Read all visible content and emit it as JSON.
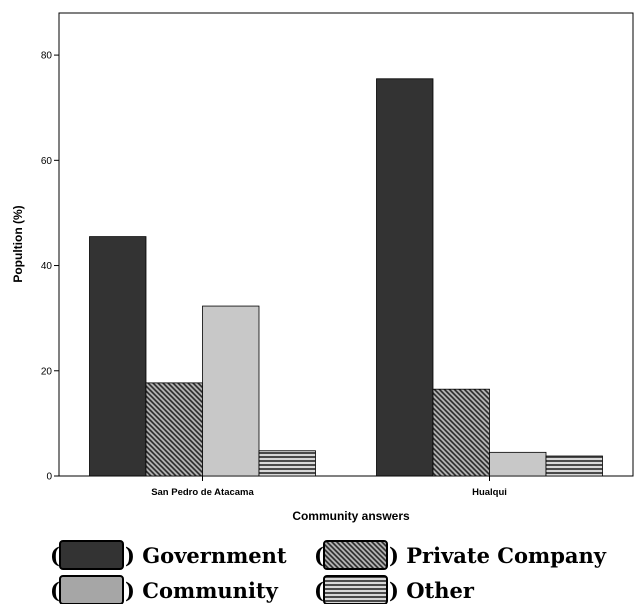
{
  "chart_data": {
    "type": "bar",
    "title": "",
    "xlabel": "Community answers",
    "ylabel": "Popultion (%)",
    "categories": [
      "San Pedro de Atacama",
      "Hualqui"
    ],
    "ylim": [
      0,
      88
    ],
    "yticks": [
      0,
      20,
      40,
      60,
      80
    ],
    "grid": false,
    "legend_position": "bottom",
    "series": [
      {
        "name": "Government",
        "values": [
          45.5,
          75.5
        ],
        "color": "#333333",
        "pattern": "solid"
      },
      {
        "name": "Private Company",
        "values": [
          17.7,
          16.5
        ],
        "color": "#8a8a8a",
        "pattern": "diagonal-hatch"
      },
      {
        "name": "Community",
        "values": [
          32.3,
          4.5
        ],
        "color": "#c8c8c8",
        "pattern": "solid"
      },
      {
        "name": "Other",
        "values": [
          4.8,
          3.8
        ],
        "color": "#808080",
        "pattern": "horizontal-lines"
      }
    ]
  }
}
